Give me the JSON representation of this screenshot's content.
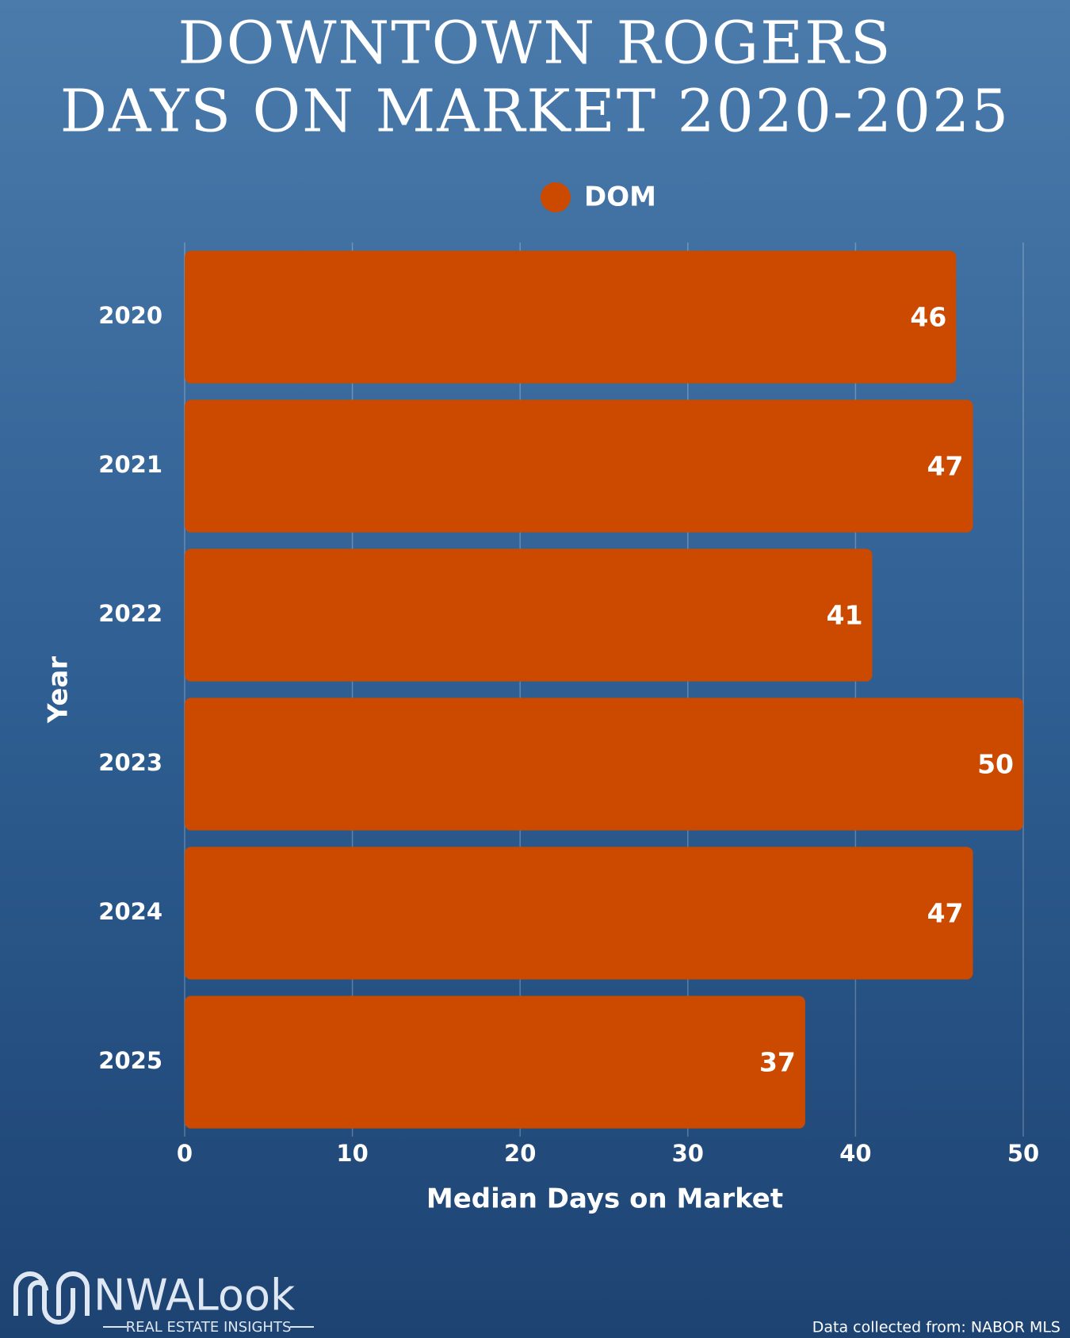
{
  "chart_data": {
    "type": "bar",
    "orientation": "horizontal",
    "title": "DOWNTOWN ROGERS",
    "subtitle": "DAYS ON MARKET 2020-2025",
    "categories": [
      "2020",
      "2021",
      "2022",
      "2023",
      "2024",
      "2025"
    ],
    "series": [
      {
        "name": "DOM",
        "color": "#cc4a00",
        "values": [
          46,
          47,
          41,
          50,
          47,
          37
        ]
      }
    ],
    "xlim": [
      0,
      50
    ],
    "xticks": [
      0,
      10,
      20,
      30,
      40,
      50
    ],
    "xlabel": "Median Days on Market",
    "ylabel": "Year",
    "grid": true,
    "legend": "top"
  },
  "branding": {
    "logo": "NWALook",
    "tagline": "REAL ESTATE INSIGHTS",
    "source": "Data collected from: NABOR MLS"
  }
}
